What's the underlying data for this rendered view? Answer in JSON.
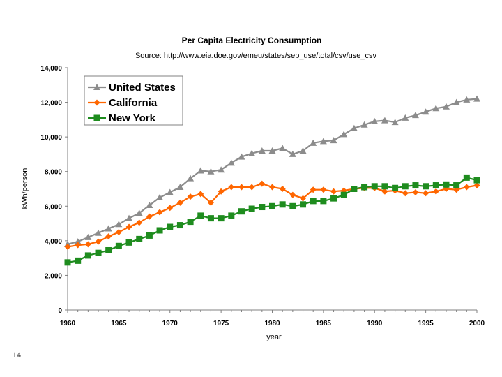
{
  "page_number": "14",
  "colors": {
    "united_states": "#8c8c8c",
    "california": "#ff6600",
    "new_york": "#1e8c1e",
    "axis": "#808080",
    "legend_border": "#808080"
  },
  "chart_data": {
    "type": "line",
    "title": "Per Capita Electricity Consumption",
    "subtitle": "Source:  http://www.eia.doe.gov/emeu/states/sep_use/total/csv/use_csv",
    "xlabel": "year",
    "ylabel": "kWh/person",
    "xlim": [
      1960,
      2000
    ],
    "ylim": [
      0,
      14000
    ],
    "x_ticks": [
      "1960",
      "1965",
      "1970",
      "1975",
      "1980",
      "1985",
      "1990",
      "1995",
      "2000"
    ],
    "y_ticks": [
      "0",
      "2,000",
      "4,000",
      "6,000",
      "8,000",
      "10,000",
      "12,000",
      "14,000"
    ],
    "grid": false,
    "legend_position": "top-left",
    "x": [
      1960,
      1961,
      1962,
      1963,
      1964,
      1965,
      1966,
      1967,
      1968,
      1969,
      1970,
      1971,
      1972,
      1973,
      1974,
      1975,
      1976,
      1977,
      1978,
      1979,
      1980,
      1981,
      1982,
      1983,
      1984,
      1985,
      1986,
      1987,
      1988,
      1989,
      1990,
      1991,
      1992,
      1993,
      1994,
      1995,
      1996,
      1997,
      1998,
      1999,
      2000
    ],
    "series": [
      {
        "name": "United States",
        "key": "united_states",
        "marker": "triangle",
        "values": [
          3800,
          3950,
          4200,
          4450,
          4700,
          4950,
          5300,
          5600,
          6050,
          6500,
          6800,
          7100,
          7600,
          8050,
          8000,
          8100,
          8500,
          8850,
          9050,
          9200,
          9200,
          9350,
          9000,
          9200,
          9650,
          9750,
          9800,
          10150,
          10500,
          10700,
          10900,
          10950,
          10850,
          11100,
          11250,
          11450,
          11650,
          11750,
          12000,
          12150,
          12200
        ]
      },
      {
        "name": "California",
        "key": "california",
        "marker": "diamond",
        "values": [
          3650,
          3750,
          3800,
          3950,
          4250,
          4500,
          4800,
          5050,
          5400,
          5650,
          5900,
          6200,
          6550,
          6700,
          6200,
          6850,
          7100,
          7100,
          7100,
          7300,
          7100,
          7000,
          6650,
          6450,
          6950,
          6950,
          6850,
          6900,
          7000,
          7050,
          7050,
          6850,
          6900,
          6750,
          6800,
          6750,
          6850,
          7000,
          6950,
          7100,
          7200
        ]
      },
      {
        "name": "New York",
        "key": "new_york",
        "marker": "square",
        "values": [
          2750,
          2850,
          3150,
          3300,
          3450,
          3700,
          3900,
          4100,
          4300,
          4600,
          4800,
          4900,
          5100,
          5450,
          5300,
          5300,
          5450,
          5700,
          5850,
          5950,
          6000,
          6100,
          6000,
          6100,
          6300,
          6300,
          6450,
          6650,
          7000,
          7100,
          7150,
          7150,
          7050,
          7150,
          7200,
          7150,
          7200,
          7250,
          7200,
          7650,
          7500
        ]
      }
    ]
  }
}
